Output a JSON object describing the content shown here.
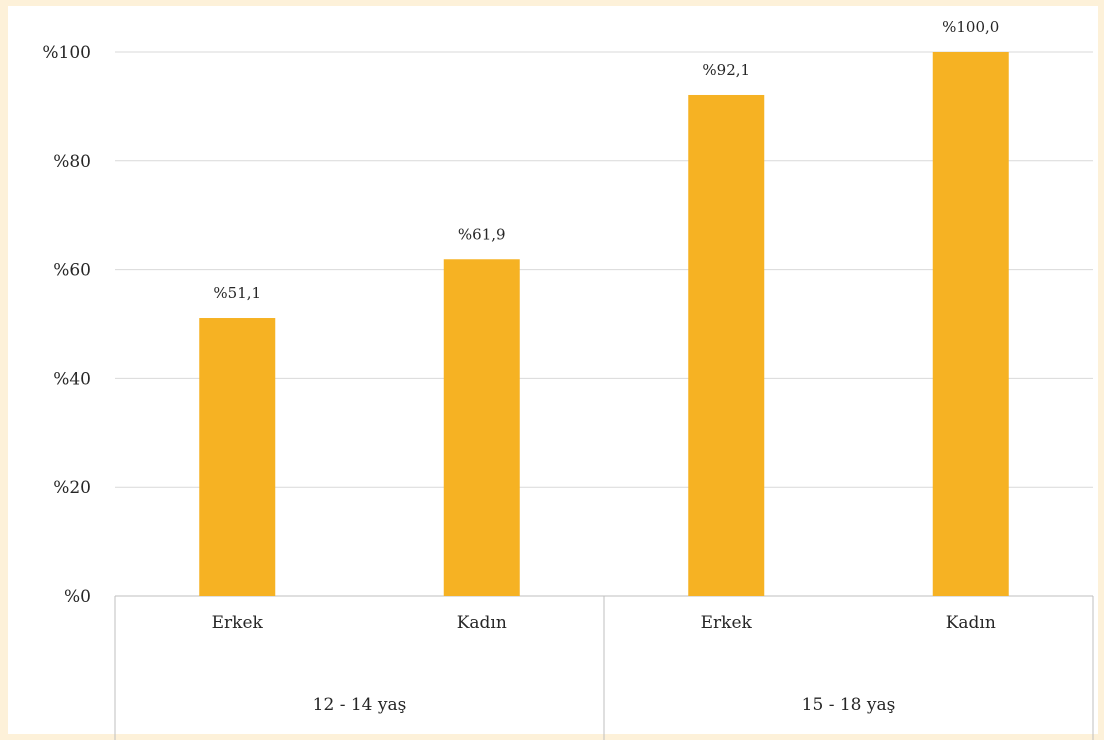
{
  "colors": {
    "bar": "#f6b223",
    "grid": "#d9d9d9",
    "axis": "#bfbfbf",
    "text": "#262626",
    "frame": "#fdf1d9"
  },
  "chart_data": {
    "type": "bar",
    "categories": [
      "Erkek",
      "Kadın",
      "Erkek",
      "Kadın"
    ],
    "groups": [
      {
        "label": "12 - 14 yaş",
        "categories": [
          "Erkek",
          "Kadın"
        ]
      },
      {
        "label": "15 - 18 yaş",
        "categories": [
          "Erkek",
          "Kadın"
        ]
      }
    ],
    "values": [
      51.1,
      61.9,
      92.1,
      100.0
    ],
    "data_labels": [
      "%51,1",
      "%61,9",
      "%92,1",
      "%100,0"
    ],
    "yticks": [
      0,
      20,
      40,
      60,
      80,
      100
    ],
    "ytick_labels": [
      "%0",
      "%20",
      "%40",
      "%60",
      "%80",
      "%100"
    ],
    "ylim": [
      0,
      100
    ],
    "grid": true,
    "legend": "none"
  }
}
